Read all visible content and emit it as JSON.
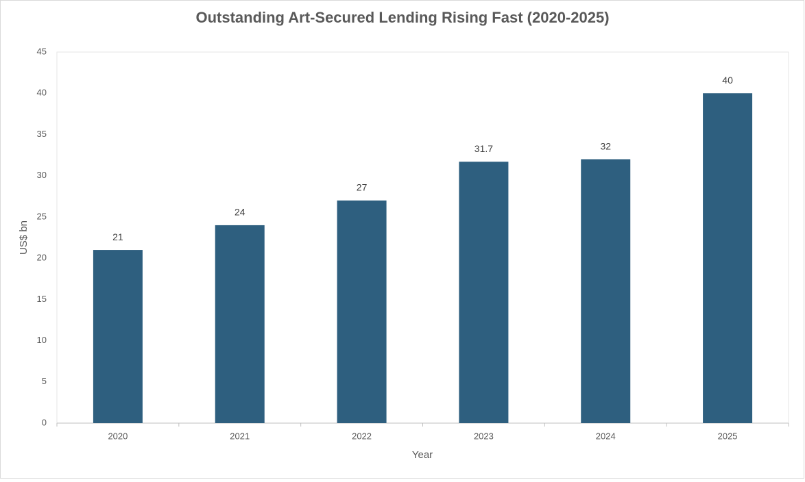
{
  "chart_data": {
    "type": "bar",
    "title": "Outstanding Art-Secured Lending Rising Fast (2020-2025)",
    "x_label": "Year",
    "y_label": "US$ bn",
    "categories": [
      "2020",
      "2021",
      "2022",
      "2023",
      "2024",
      "2025"
    ],
    "values": [
      21,
      24,
      27,
      31.7,
      32,
      40
    ],
    "color": "#2e5f7f",
    "ylim": [
      0,
      45
    ],
    "yticks": [
      0,
      5,
      10,
      15,
      20,
      25,
      30,
      35,
      40,
      45
    ],
    "grid": false
  }
}
